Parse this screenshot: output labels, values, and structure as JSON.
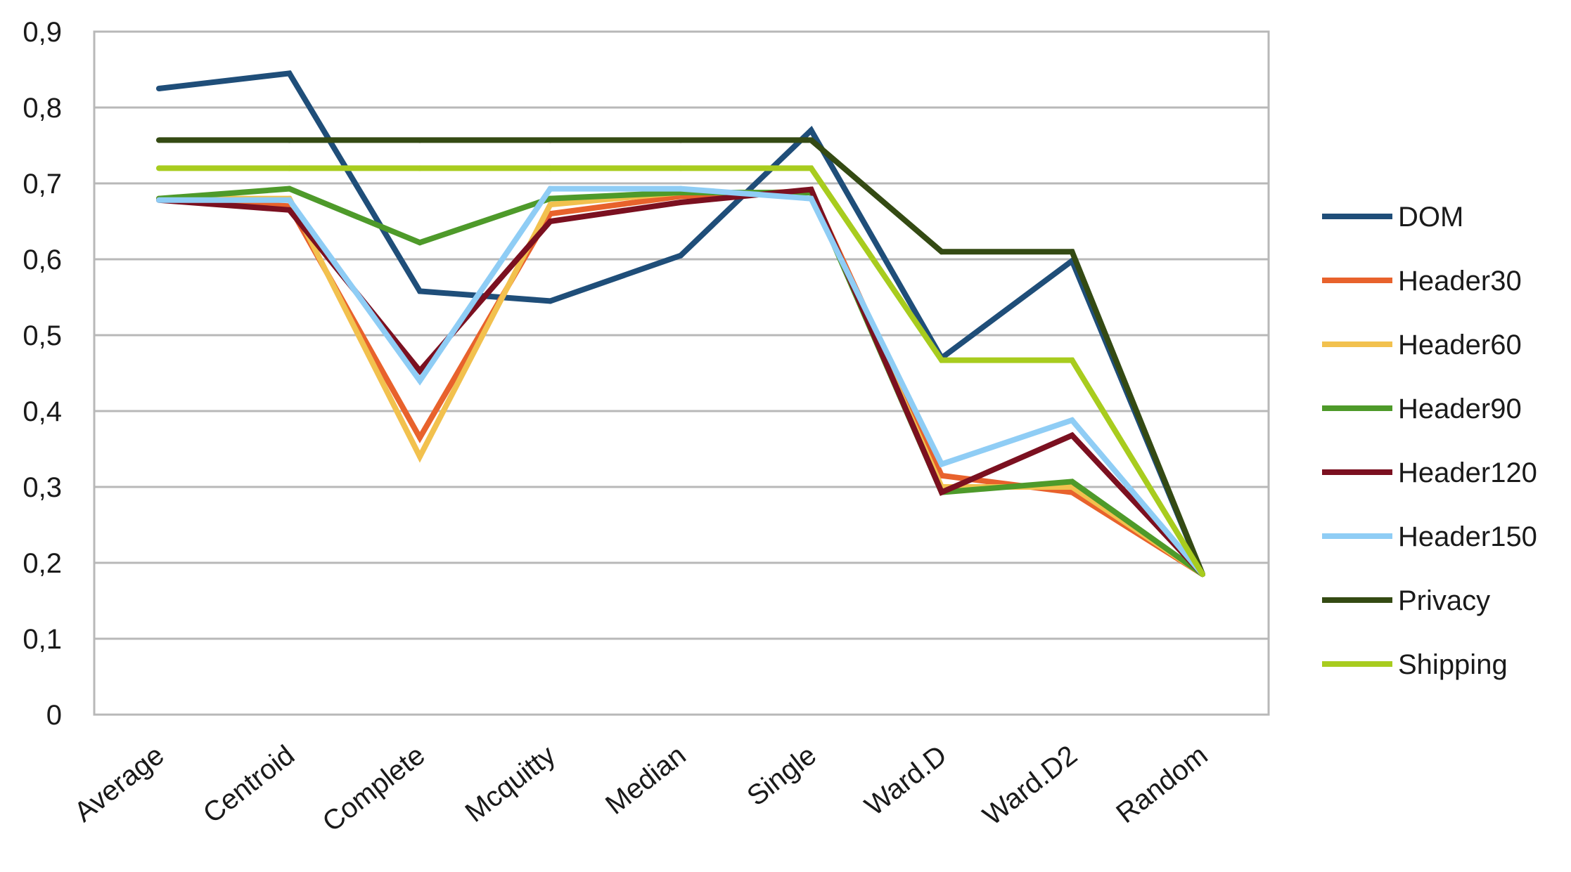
{
  "chart_data": {
    "type": "line",
    "title": "",
    "xlabel": "",
    "ylabel": "",
    "categories": [
      "Average",
      "Centroid",
      "Complete",
      "Mcquitty",
      "Median",
      "Single",
      "Ward.D",
      "Ward.D2",
      "Random"
    ],
    "y_ticks": [
      "0",
      "0,1",
      "0,2",
      "0,3",
      "0,4",
      "0,5",
      "0,6",
      "0,7",
      "0,8",
      "0,9"
    ],
    "ylim": [
      0,
      0.9
    ],
    "grid": true,
    "legend_position": "right",
    "series": [
      {
        "name": "DOM",
        "color": "#1f4e79",
        "values": [
          0.825,
          0.845,
          0.558,
          0.545,
          0.605,
          0.77,
          0.47,
          0.598,
          0.185
        ]
      },
      {
        "name": "Header30",
        "color": "#e8622c",
        "values": [
          0.68,
          0.67,
          0.365,
          0.66,
          0.683,
          0.69,
          0.315,
          0.293,
          0.185
        ]
      },
      {
        "name": "Header60",
        "color": "#f2c14e",
        "values": [
          0.68,
          0.68,
          0.34,
          0.672,
          0.688,
          0.688,
          0.3,
          0.3,
          0.185
        ]
      },
      {
        "name": "Header90",
        "color": "#4e9a2a",
        "values": [
          0.68,
          0.693,
          0.622,
          0.68,
          0.688,
          0.688,
          0.293,
          0.307,
          0.185
        ]
      },
      {
        "name": "Header120",
        "color": "#7b1020",
        "values": [
          0.678,
          0.665,
          0.453,
          0.65,
          0.675,
          0.692,
          0.293,
          0.368,
          0.185
        ]
      },
      {
        "name": "Header150",
        "color": "#8fcdf5",
        "values": [
          0.678,
          0.678,
          0.44,
          0.693,
          0.693,
          0.68,
          0.33,
          0.388,
          0.185
        ]
      },
      {
        "name": "Privacy",
        "color": "#344a13",
        "values": [
          0.757,
          0.757,
          0.757,
          0.757,
          0.757,
          0.757,
          0.61,
          0.61,
          0.185
        ]
      },
      {
        "name": "Shipping",
        "color": "#a8cc1e",
        "values": [
          0.72,
          0.72,
          0.72,
          0.72,
          0.72,
          0.72,
          0.467,
          0.467,
          0.185
        ]
      }
    ]
  }
}
